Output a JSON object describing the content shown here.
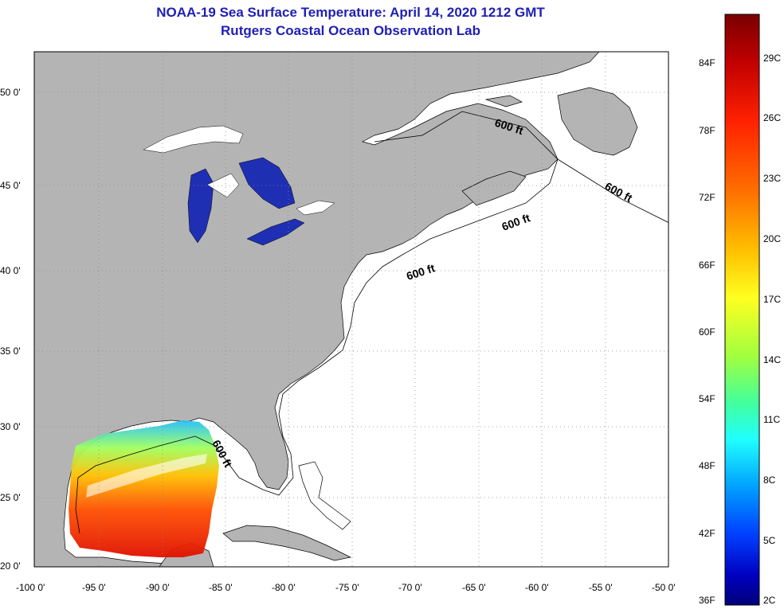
{
  "title": {
    "line1": "NOAA-19 Sea Surface Temperature:  April 14, 2020 1212 GMT",
    "line2": "Rutgers Coastal Ocean Observation Lab"
  },
  "map": {
    "lat_labels": [
      "50 0'",
      "45 0'",
      "40 0'",
      "35 0'",
      "30 0'",
      "25 0'",
      "20 0'"
    ],
    "lon_labels": [
      "-100 0'",
      "-95 0'",
      "-90 0'",
      "-85 0'",
      "-80 0'",
      "-75 0'",
      "-70 0'",
      "-65 0'",
      "-60 0'",
      "-55 0'",
      "-50 0'"
    ],
    "contour_label": "600 ft",
    "colors": {
      "land": "#b4b4b4",
      "ocean": "#ffffff",
      "lakes": "#1e2fb4",
      "grid": "#888888"
    }
  },
  "colorbar": {
    "fahrenheit_labels": [
      "84F",
      "78F",
      "72F",
      "66F",
      "60F",
      "54F",
      "48F",
      "42F",
      "36F"
    ],
    "celsius_labels": [
      "29C",
      "26C",
      "23C",
      "20C",
      "17C",
      "14C",
      "11C",
      "8C",
      "5C",
      "2C"
    ],
    "gradient": [
      "#7a0000",
      "#c00000",
      "#ff2000",
      "#ff7000",
      "#ffc000",
      "#ffff20",
      "#a0ff40",
      "#40ffa0",
      "#20ffff",
      "#00a0ff",
      "#0040ff",
      "#0000c0",
      "#00007a"
    ]
  }
}
